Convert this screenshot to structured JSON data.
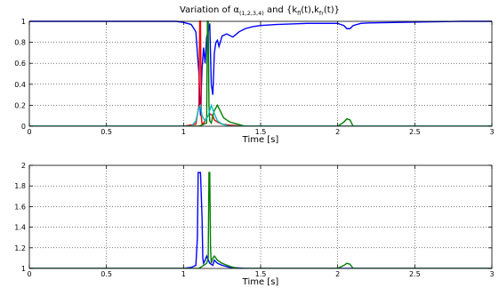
{
  "chart_data": [
    {
      "type": "line",
      "title": "Variation of α(1,2,3,4) and {kfl(t),kfr(t)}",
      "title_parts": {
        "alpha": "Variation of α",
        "alpha_sub": "(1,2,3,4)",
        "and": " and {k",
        "k1_sub": "fl",
        "mid": "(t),k",
        "k2_sub": "fr",
        "end": "(t)}"
      },
      "xlabel": "Time [s]",
      "ylabel": "",
      "xlim": [
        0,
        3
      ],
      "ylim": [
        0,
        1
      ],
      "x_ticks": [
        "0",
        "0.5",
        "1",
        "1.5",
        "2",
        "2.5",
        "3"
      ],
      "y_ticks": [
        "0",
        "0.2",
        "0.4",
        "0.6",
        "0.8",
        "1"
      ],
      "grid": true,
      "series": [
        {
          "color": "#0000ff",
          "x": [
            0,
            0.95,
            1.0,
            1.05,
            1.08,
            1.1,
            1.11,
            1.12,
            1.13,
            1.14,
            1.15,
            1.16,
            1.17,
            1.18,
            1.19,
            1.2,
            1.21,
            1.22,
            1.23,
            1.25,
            1.28,
            1.32,
            1.36,
            1.4,
            1.45,
            1.5,
            1.6,
            1.8,
            2.0,
            2.04,
            2.06,
            2.08,
            2.1,
            2.15,
            2.2,
            2.4,
            2.6,
            2.8,
            3.0
          ],
          "y": [
            1.0,
            1.0,
            0.99,
            0.97,
            0.9,
            0.5,
            0.1,
            0.55,
            0.75,
            0.6,
            0.85,
            0.9,
            0.98,
            0.4,
            0.3,
            0.7,
            0.8,
            0.82,
            0.76,
            0.86,
            0.88,
            0.85,
            0.9,
            0.93,
            0.95,
            0.96,
            0.97,
            0.98,
            0.98,
            0.96,
            0.93,
            0.93,
            0.96,
            0.98,
            0.985,
            0.99,
            0.995,
            1.0,
            1.0
          ]
        },
        {
          "color": "#ff0000",
          "x": [
            0,
            1.0,
            1.08,
            1.1,
            1.105,
            1.11,
            1.115,
            1.12,
            1.13,
            1.15,
            1.17,
            1.19,
            1.2,
            1.22,
            1.25,
            1.3,
            1.4,
            2.0,
            3.0
          ],
          "y": [
            0,
            0,
            0.02,
            0.2,
            1.0,
            1.0,
            0.1,
            0.02,
            0.03,
            0.08,
            0.12,
            0.1,
            0.06,
            0.04,
            0.02,
            0.01,
            0,
            0,
            0
          ]
        },
        {
          "color": "#007f00",
          "x": [
            0,
            1.1,
            1.15,
            1.155,
            1.16,
            1.165,
            1.17,
            1.18,
            1.19,
            1.2,
            1.22,
            1.24,
            1.26,
            1.3,
            1.35,
            1.4,
            2.0,
            2.04,
            2.06,
            2.08,
            2.1,
            3.0
          ],
          "y": [
            0,
            0,
            0.03,
            1.0,
            1.0,
            0.2,
            0.05,
            0.03,
            0.1,
            0.15,
            0.2,
            0.14,
            0.08,
            0.04,
            0.02,
            0,
            0,
            0.04,
            0.07,
            0.06,
            0,
            0
          ]
        },
        {
          "color": "#00bfbf",
          "x": [
            0,
            1.05,
            1.08,
            1.1,
            1.11,
            1.12,
            1.14,
            1.16,
            1.18,
            1.2,
            1.22,
            1.25,
            1.3,
            3.0
          ],
          "y": [
            0,
            0,
            0.05,
            0.18,
            0.2,
            0.1,
            0.05,
            0.1,
            0.2,
            0.12,
            0.05,
            0.02,
            0,
            0
          ]
        }
      ]
    },
    {
      "type": "line",
      "title": "",
      "xlabel": "Time [s]",
      "ylabel": "",
      "xlim": [
        0,
        3
      ],
      "ylim": [
        1,
        2
      ],
      "x_ticks": [
        "0",
        "0.5",
        "1",
        "1.5",
        "2",
        "2.5",
        "3"
      ],
      "y_ticks": [
        "1",
        "1.2",
        "1.4",
        "1.6",
        "1.8",
        "2"
      ],
      "grid": true,
      "series": [
        {
          "color": "#0000ff",
          "x": [
            0,
            1.0,
            1.05,
            1.08,
            1.09,
            1.095,
            1.11,
            1.12,
            1.125,
            1.13,
            1.14,
            1.15,
            1.17,
            1.19,
            1.2,
            1.22,
            1.25,
            1.3,
            1.4,
            3.0
          ],
          "y": [
            1.0,
            1.0,
            1.01,
            1.03,
            1.3,
            1.93,
            1.93,
            1.5,
            1.1,
            1.05,
            1.08,
            1.12,
            1.05,
            1.03,
            1.08,
            1.05,
            1.03,
            1.01,
            1.0,
            1.0
          ]
        },
        {
          "color": "#007f00",
          "x": [
            0,
            1.1,
            1.13,
            1.15,
            1.16,
            1.165,
            1.17,
            1.175,
            1.18,
            1.19,
            1.2,
            1.22,
            1.25,
            1.3,
            1.35,
            2.0,
            2.04,
            2.06,
            2.08,
            2.1,
            3.0
          ],
          "y": [
            1.0,
            1.0,
            1.03,
            1.05,
            1.1,
            1.93,
            1.93,
            1.2,
            1.05,
            1.1,
            1.12,
            1.08,
            1.05,
            1.02,
            1.0,
            1.0,
            1.03,
            1.05,
            1.04,
            1.0,
            1.0
          ]
        }
      ]
    }
  ]
}
